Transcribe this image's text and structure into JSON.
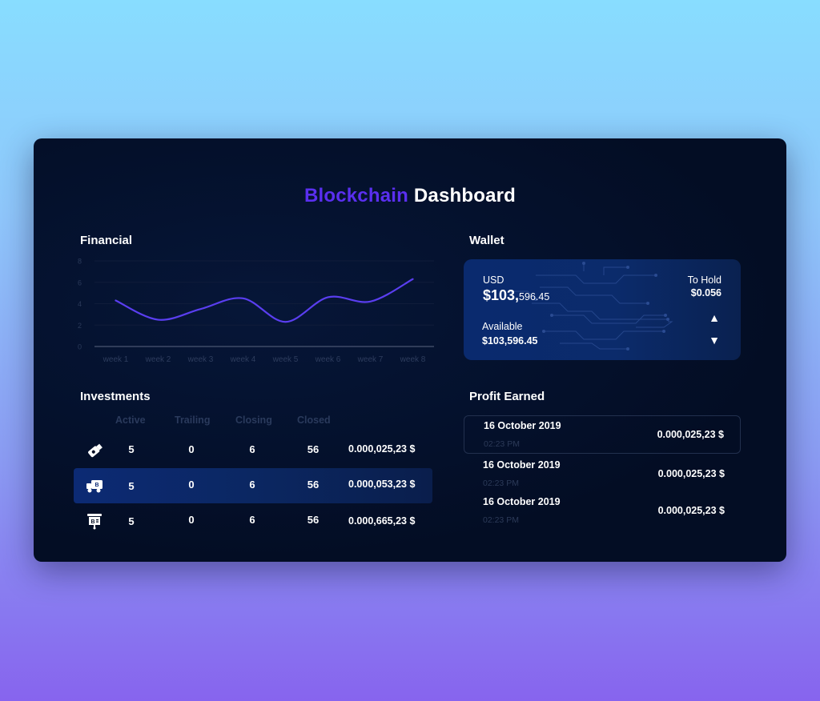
{
  "header": {
    "title_accent": "Blockchain",
    "title_main": "Dashboard"
  },
  "colors": {
    "accent": "#5a2ff0",
    "line": "#5a3ef0",
    "panel": "#030d24",
    "card": "#0b2b6b"
  },
  "financial": {
    "label": "Financial",
    "chart_data": {
      "type": "line",
      "categories": [
        "week 1",
        "week 2",
        "week 3",
        "week 4",
        "week 5",
        "week 6",
        "week 7",
        "week 8"
      ],
      "series": [
        {
          "values": [
            4.3,
            2.5,
            3.5,
            4.5,
            2.3,
            4.6,
            4.2,
            6.3
          ]
        }
      ],
      "yticks": [
        "0",
        "2",
        "4",
        "6",
        "8"
      ],
      "ylim": [
        0,
        8
      ],
      "grid": true
    }
  },
  "wallet": {
    "label": "Wallet",
    "currency": "USD",
    "balance_big": "$103,",
    "balance_small": "596.45",
    "available_label": "Available",
    "available_value": "$103,596.45",
    "to_hold_label": "To Hold",
    "to_hold_value": "$0.056",
    "up_icon": "▲",
    "down_icon": "▼"
  },
  "investments": {
    "label": "Investments",
    "columns": [
      "Active",
      "Trailing",
      "Closing",
      "Closed"
    ],
    "rows": [
      {
        "icon": "usb-drive-icon",
        "active": "5",
        "trailing": "0",
        "closing": "6",
        "closed": "56",
        "amount": "0.000,025,23 $"
      },
      {
        "icon": "bitcoin-truck-icon",
        "active": "5",
        "trailing": "0",
        "closing": "6",
        "closed": "56",
        "amount": "0.000,053,23 $"
      },
      {
        "icon": "bitcoin-board-icon",
        "active": "5",
        "trailing": "0",
        "closing": "6",
        "closed": "56",
        "amount": "0.000,665,23 $"
      }
    ]
  },
  "profit": {
    "label": "Profit Earned",
    "rows": [
      {
        "date": "16 October 2019",
        "time": "02:23 PM",
        "amount": "0.000,025,23 $"
      },
      {
        "date": "16 October 2019",
        "time": "02:23 PM",
        "amount": "0.000,025,23 $"
      },
      {
        "date": "16 October 2019",
        "time": "02:23 PM",
        "amount": "0.000,025,23 $"
      }
    ]
  }
}
